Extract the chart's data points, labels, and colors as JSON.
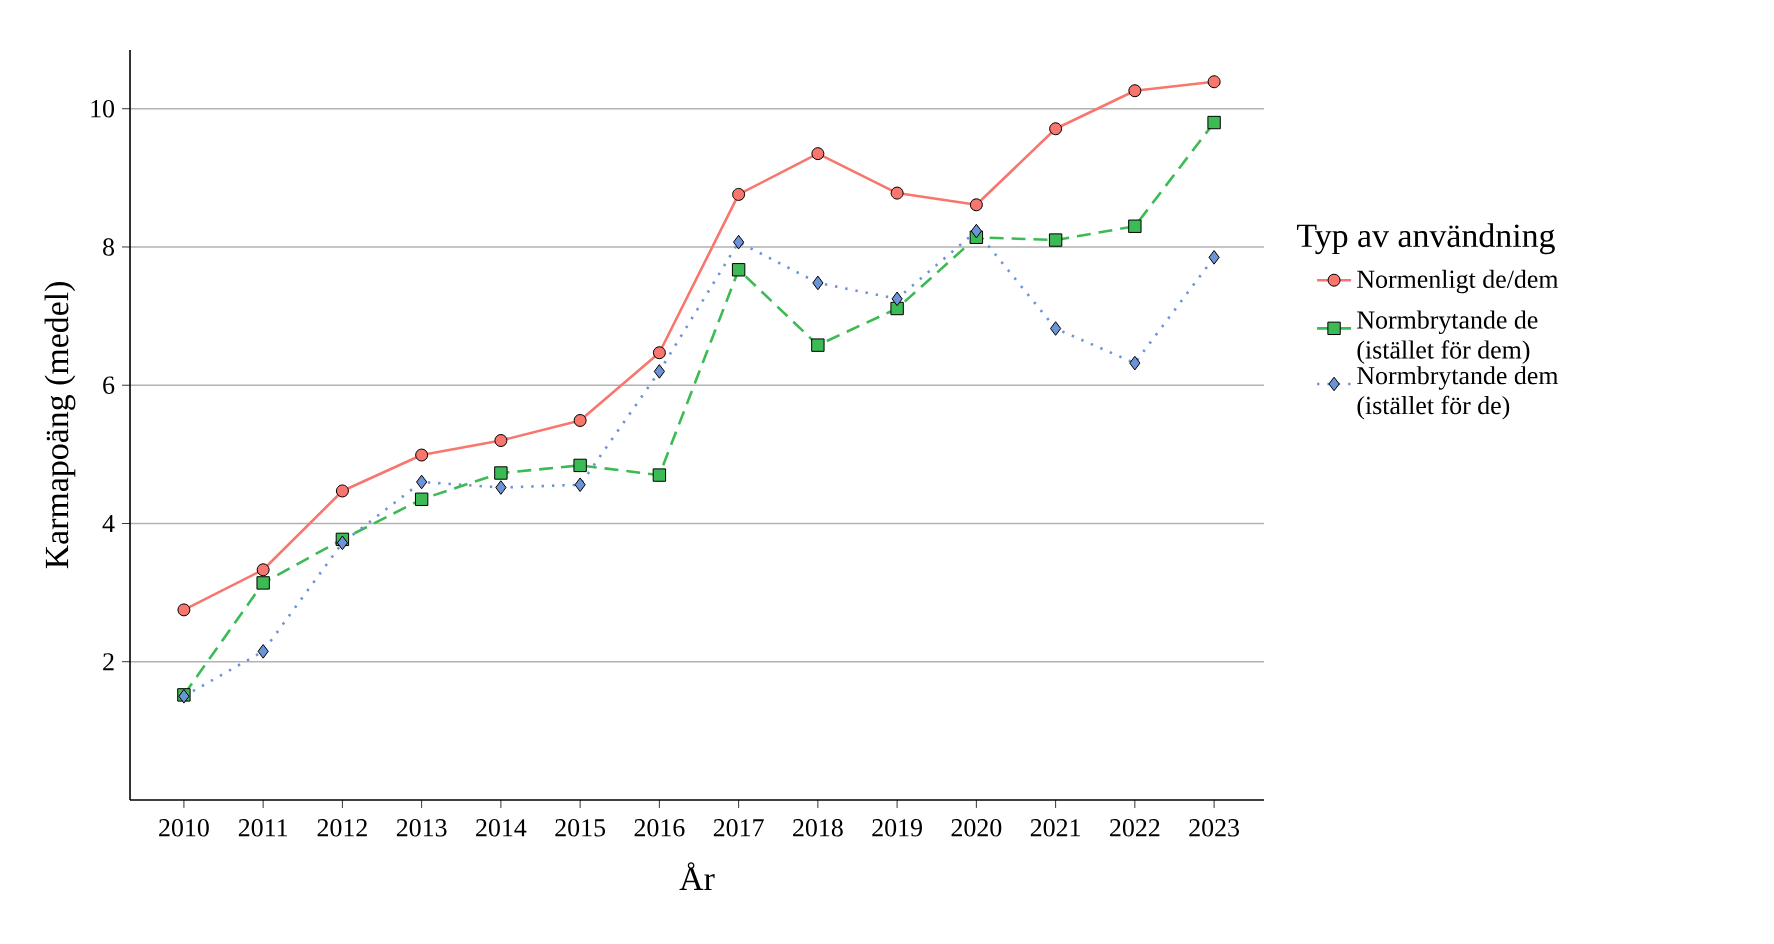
{
  "chart_data": {
    "type": "line",
    "xlabel": "År",
    "ylabel": "Karmapoäng (medel)",
    "legend_title": "Typ av användning",
    "x": [
      2010,
      2011,
      2012,
      2013,
      2014,
      2015,
      2016,
      2017,
      2018,
      2019,
      2020,
      2021,
      2022,
      2023
    ],
    "series": [
      {
        "name": "Normenligt de/dem",
        "color": "#f8766d",
        "marker": "circle",
        "line_style": "solid",
        "values": [
          2.75,
          3.33,
          4.47,
          4.99,
          5.2,
          5.49,
          6.47,
          8.76,
          9.35,
          8.78,
          8.61,
          9.71,
          10.26,
          10.39
        ]
      },
      {
        "name": "Normbrytande de (istället för dem)",
        "color": "#3cba54",
        "marker": "square",
        "line_style": "dashed",
        "values": [
          1.52,
          3.14,
          3.77,
          4.35,
          4.73,
          4.84,
          4.7,
          7.67,
          6.58,
          7.11,
          8.14,
          8.1,
          8.3,
          9.8
        ]
      },
      {
        "name": "Normbrytande dem (istället för de)",
        "color": "#6b93d6",
        "marker": "diamond",
        "line_style": "dotted",
        "values": [
          1.5,
          2.15,
          3.72,
          4.6,
          4.52,
          4.56,
          6.2,
          8.07,
          7.48,
          7.25,
          8.23,
          6.82,
          6.32,
          7.85
        ]
      }
    ],
    "xlim": [
      2009.32,
      2023.63
    ],
    "ylim": [
      0,
      10.85
    ],
    "xticks": [
      2010,
      2011,
      2012,
      2013,
      2014,
      2015,
      2016,
      2017,
      2018,
      2019,
      2020,
      2021,
      2022,
      2023
    ],
    "yticks": [
      2,
      4,
      6,
      8,
      10
    ],
    "grid": "y",
    "legend": "right"
  }
}
